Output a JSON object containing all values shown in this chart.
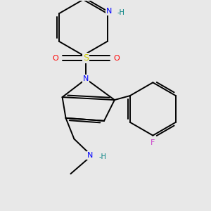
{
  "bg_color": "#e8e8e8",
  "atom_colors": {
    "C": "#000000",
    "N": "#0000ff",
    "O": "#ff0000",
    "S": "#cccc00",
    "F": "#cc44cc",
    "H": "#008080"
  }
}
